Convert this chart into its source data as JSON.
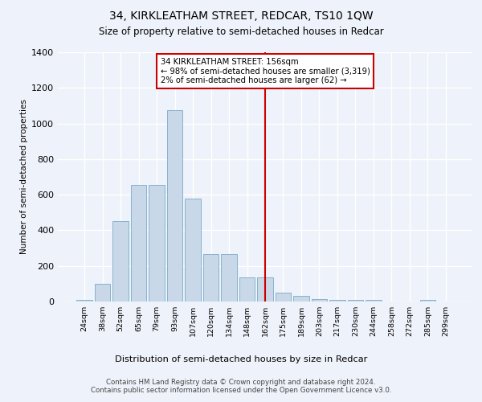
{
  "title": "34, KIRKLEATHAM STREET, REDCAR, TS10 1QW",
  "subtitle": "Size of property relative to semi-detached houses in Redcar",
  "xlabel": "Distribution of semi-detached houses by size in Redcar",
  "ylabel": "Number of semi-detached properties",
  "bar_color": "#c8d8e8",
  "bar_edge_color": "#7aaac8",
  "annotation_box_text": "34 KIRKLEATHAM STREET: 156sqm\n← 98% of semi-detached houses are smaller (3,319)\n2% of semi-detached houses are larger (62) →",
  "footer": "Contains HM Land Registry data © Crown copyright and database right 2024.\nContains public sector information licensed under the Open Government Licence v3.0.",
  "categories": [
    "24sqm",
    "38sqm",
    "52sqm",
    "65sqm",
    "79sqm",
    "93sqm",
    "107sqm",
    "120sqm",
    "134sqm",
    "148sqm",
    "162sqm",
    "175sqm",
    "189sqm",
    "203sqm",
    "217sqm",
    "230sqm",
    "244sqm",
    "258sqm",
    "272sqm",
    "285sqm",
    "299sqm"
  ],
  "values": [
    10,
    100,
    450,
    655,
    655,
    1075,
    580,
    265,
    265,
    135,
    135,
    50,
    30,
    15,
    10,
    10,
    8,
    0,
    0,
    8,
    0
  ],
  "ylim": [
    0,
    1400
  ],
  "yticks": [
    0,
    200,
    400,
    600,
    800,
    1000,
    1200,
    1400
  ],
  "bg_color": "#eef2fa",
  "grid_color": "#ffffff",
  "annotation_line_color": "#cc0000",
  "annotation_box_color": "#cc0000",
  "red_line_idx": 10
}
